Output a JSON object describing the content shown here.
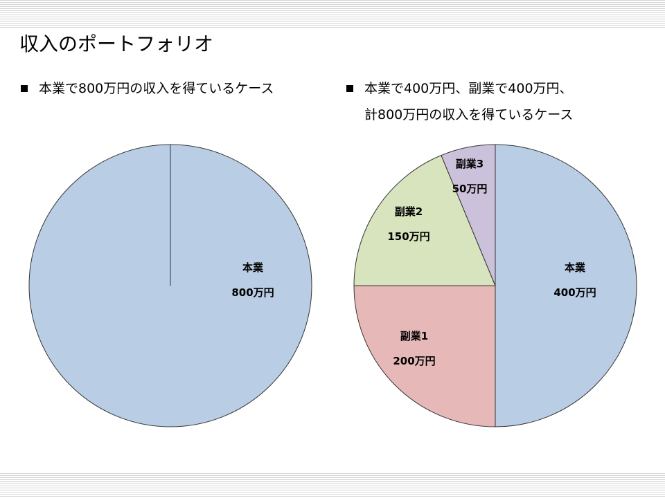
{
  "slide": {
    "title": "収入のポートフォリオ",
    "left_bullets": [
      "本業で800万円の収入を得ているケース"
    ],
    "right_bullets": [
      "本業で400万円、副業で400万円、",
      "計800万円の収入を得ているケース"
    ]
  },
  "chart_data": [
    {
      "type": "pie",
      "slices": [
        {
          "label": "本業",
          "value": 800,
          "value_label": "800万円",
          "color": "#b9cde5"
        }
      ],
      "title": "",
      "legend": "none"
    },
    {
      "type": "pie",
      "slices": [
        {
          "label": "本業",
          "value": 400,
          "value_label": "400万円",
          "color": "#b9cde5"
        },
        {
          "label": "副業1",
          "value": 200,
          "value_label": "200万円",
          "color": "#e6b9b8"
        },
        {
          "label": "副業2",
          "value": 150,
          "value_label": "150万円",
          "color": "#d7e4bd"
        },
        {
          "label": "副業3",
          "value": 50,
          "value_label": "50万円",
          "color": "#ccc1da"
        }
      ],
      "title": "",
      "legend": "none"
    }
  ]
}
